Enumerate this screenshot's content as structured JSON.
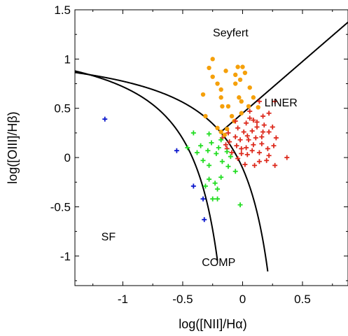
{
  "chart_data": {
    "type": "scatter",
    "xlabel": "log([NII]/Hα)",
    "ylabel": "log([OIII]/Hβ)",
    "xlim": [
      -1.4,
      0.88
    ],
    "ylim": [
      -1.3,
      1.5
    ],
    "x_ticks": [
      -1,
      -0.5,
      0,
      0.5
    ],
    "x_tick_labels": [
      "-1",
      "-0.5",
      "0",
      "0.5"
    ],
    "y_ticks": [
      -1,
      -0.5,
      0,
      0.5,
      1,
      1.5
    ],
    "y_tick_labels": [
      "-1",
      "-0.5",
      "0",
      "0.5",
      "1",
      "1.5"
    ],
    "grid": false,
    "legend": "none",
    "region_labels": [
      {
        "text": "Seyfert",
        "x": -0.1,
        "y": 1.23
      },
      {
        "text": "LINER",
        "x": 0.32,
        "y": 0.52
      },
      {
        "text": "SF",
        "x": -1.12,
        "y": -0.84
      },
      {
        "text": "COMP",
        "x": -0.2,
        "y": -1.1
      }
    ],
    "curves": [
      {
        "name": "Kewley",
        "formula": "0.61/(x-0.47)+1.19",
        "x_range": [
          -1.4,
          0.21
        ],
        "color": "#000000"
      },
      {
        "name": "Kauffmann",
        "formula": "0.61/(x-0.05)+1.3",
        "x_range": [
          -1.4,
          -0.21
        ],
        "color": "#000000"
      },
      {
        "name": "Schawinski",
        "formula": "1.05*x+0.45",
        "x_range": [
          -0.182,
          0.88
        ],
        "color": "#000000"
      }
    ],
    "series": [
      {
        "group": "seyfert",
        "marker": "circle",
        "color": "#f5a00a",
        "points": [
          [
            -0.25,
            1.0
          ],
          [
            -0.28,
            0.91
          ],
          [
            -0.25,
            0.82
          ],
          [
            -0.21,
            0.75
          ],
          [
            -0.18,
            0.69
          ],
          [
            -0.14,
            0.88
          ],
          [
            -0.06,
            0.84
          ],
          [
            -0.04,
            0.92
          ],
          [
            0.0,
            0.92
          ],
          [
            0.02,
            0.86
          ],
          [
            -0.02,
            0.79
          ],
          [
            -0.06,
            0.75
          ],
          [
            0.06,
            0.71
          ],
          [
            0.09,
            0.61
          ],
          [
            0.13,
            0.51
          ],
          [
            -0.33,
            0.64
          ],
          [
            -0.18,
            0.61
          ],
          [
            -0.17,
            0.52
          ],
          [
            -0.12,
            0.52
          ],
          [
            -0.03,
            0.61
          ],
          [
            -0.01,
            0.57
          ],
          [
            0.05,
            0.52
          ],
          [
            -0.01,
            0.45
          ],
          [
            -0.31,
            0.42
          ],
          [
            -0.09,
            0.42
          ],
          [
            -0.07,
            0.37
          ],
          [
            -0.13,
            0.29
          ],
          [
            -0.15,
            0.23
          ],
          [
            -0.18,
            0.26
          ],
          [
            -0.21,
            0.3
          ]
        ]
      },
      {
        "group": "liner",
        "marker": "plus",
        "color": "#dd2a1d",
        "points": [
          [
            0.06,
            0.47
          ],
          [
            0.14,
            0.57
          ],
          [
            0.27,
            0.57
          ],
          [
            0.22,
            0.45
          ],
          [
            0.17,
            0.42
          ],
          [
            0.09,
            0.38
          ],
          [
            0.12,
            0.31
          ],
          [
            0.08,
            0.27
          ],
          [
            0.01,
            0.26
          ],
          [
            -0.04,
            0.3
          ],
          [
            0.03,
            0.35
          ],
          [
            0.18,
            0.33
          ],
          [
            0.25,
            0.31
          ],
          [
            0.22,
            0.26
          ],
          [
            0.28,
            0.2
          ],
          [
            0.16,
            0.21
          ],
          [
            0.11,
            0.2
          ],
          [
            0.05,
            0.18
          ],
          [
            -0.02,
            0.18
          ],
          [
            -0.06,
            0.21
          ],
          [
            -0.12,
            0.25
          ],
          [
            -0.17,
            0.2
          ],
          [
            -0.11,
            0.16
          ],
          [
            -0.05,
            0.12
          ],
          [
            -0.01,
            0.09
          ],
          [
            0.03,
            0.1
          ],
          [
            0.09,
            0.13
          ],
          [
            0.16,
            0.14
          ],
          [
            0.26,
            0.12
          ],
          [
            0.21,
            0.09
          ],
          [
            -0.01,
            0.04
          ],
          [
            0.04,
            0.03
          ],
          [
            0.08,
            0.07
          ],
          [
            0.14,
            0.05
          ],
          [
            0.22,
            0.02
          ],
          [
            -0.13,
            0.09
          ],
          [
            -0.09,
            0.05
          ],
          [
            -0.04,
            -0.01
          ],
          [
            0.02,
            -0.07
          ],
          [
            0.1,
            -0.08
          ],
          [
            0.14,
            -0.04
          ],
          [
            0.2,
            -0.03
          ],
          [
            0.37,
            0.0
          ],
          [
            0.27,
            -0.08
          ],
          [
            0.04,
            0.22
          ],
          [
            -0.14,
            0.13
          ],
          [
            0.17,
            0.26
          ],
          [
            0.12,
            0.36
          ],
          [
            -0.06,
            0.37
          ],
          [
            0.06,
            0.4
          ]
        ]
      },
      {
        "group": "comp",
        "marker": "plus",
        "color": "#22dd22",
        "points": [
          [
            -0.41,
            0.25
          ],
          [
            -0.28,
            0.24
          ],
          [
            -0.18,
            0.18
          ],
          [
            -0.26,
            0.15
          ],
          [
            -0.35,
            0.12
          ],
          [
            -0.46,
            0.1
          ],
          [
            -0.29,
            0.07
          ],
          [
            -0.22,
            0.04
          ],
          [
            -0.2,
            0.1
          ],
          [
            -0.13,
            0.06
          ],
          [
            -0.1,
            0.01
          ],
          [
            -0.17,
            -0.04
          ],
          [
            -0.33,
            -0.03
          ],
          [
            -0.28,
            -0.08
          ],
          [
            -0.12,
            -0.09
          ],
          [
            -0.06,
            -0.14
          ],
          [
            -0.18,
            -0.2
          ],
          [
            -0.28,
            -0.22
          ],
          [
            -0.31,
            -0.29
          ],
          [
            -0.21,
            -0.32
          ],
          [
            -0.23,
            -0.26
          ],
          [
            -0.25,
            -0.42
          ],
          [
            -0.21,
            -0.42
          ],
          [
            -0.02,
            -0.48
          ],
          [
            -0.38,
            0.05
          ]
        ]
      },
      {
        "group": "sf",
        "marker": "plus",
        "color": "#0a16cc",
        "points": [
          [
            -1.15,
            0.39
          ],
          [
            -0.55,
            0.07
          ],
          [
            -0.41,
            -0.29
          ],
          [
            -0.33,
            -0.42
          ],
          [
            -0.32,
            -0.63
          ]
        ]
      }
    ]
  }
}
